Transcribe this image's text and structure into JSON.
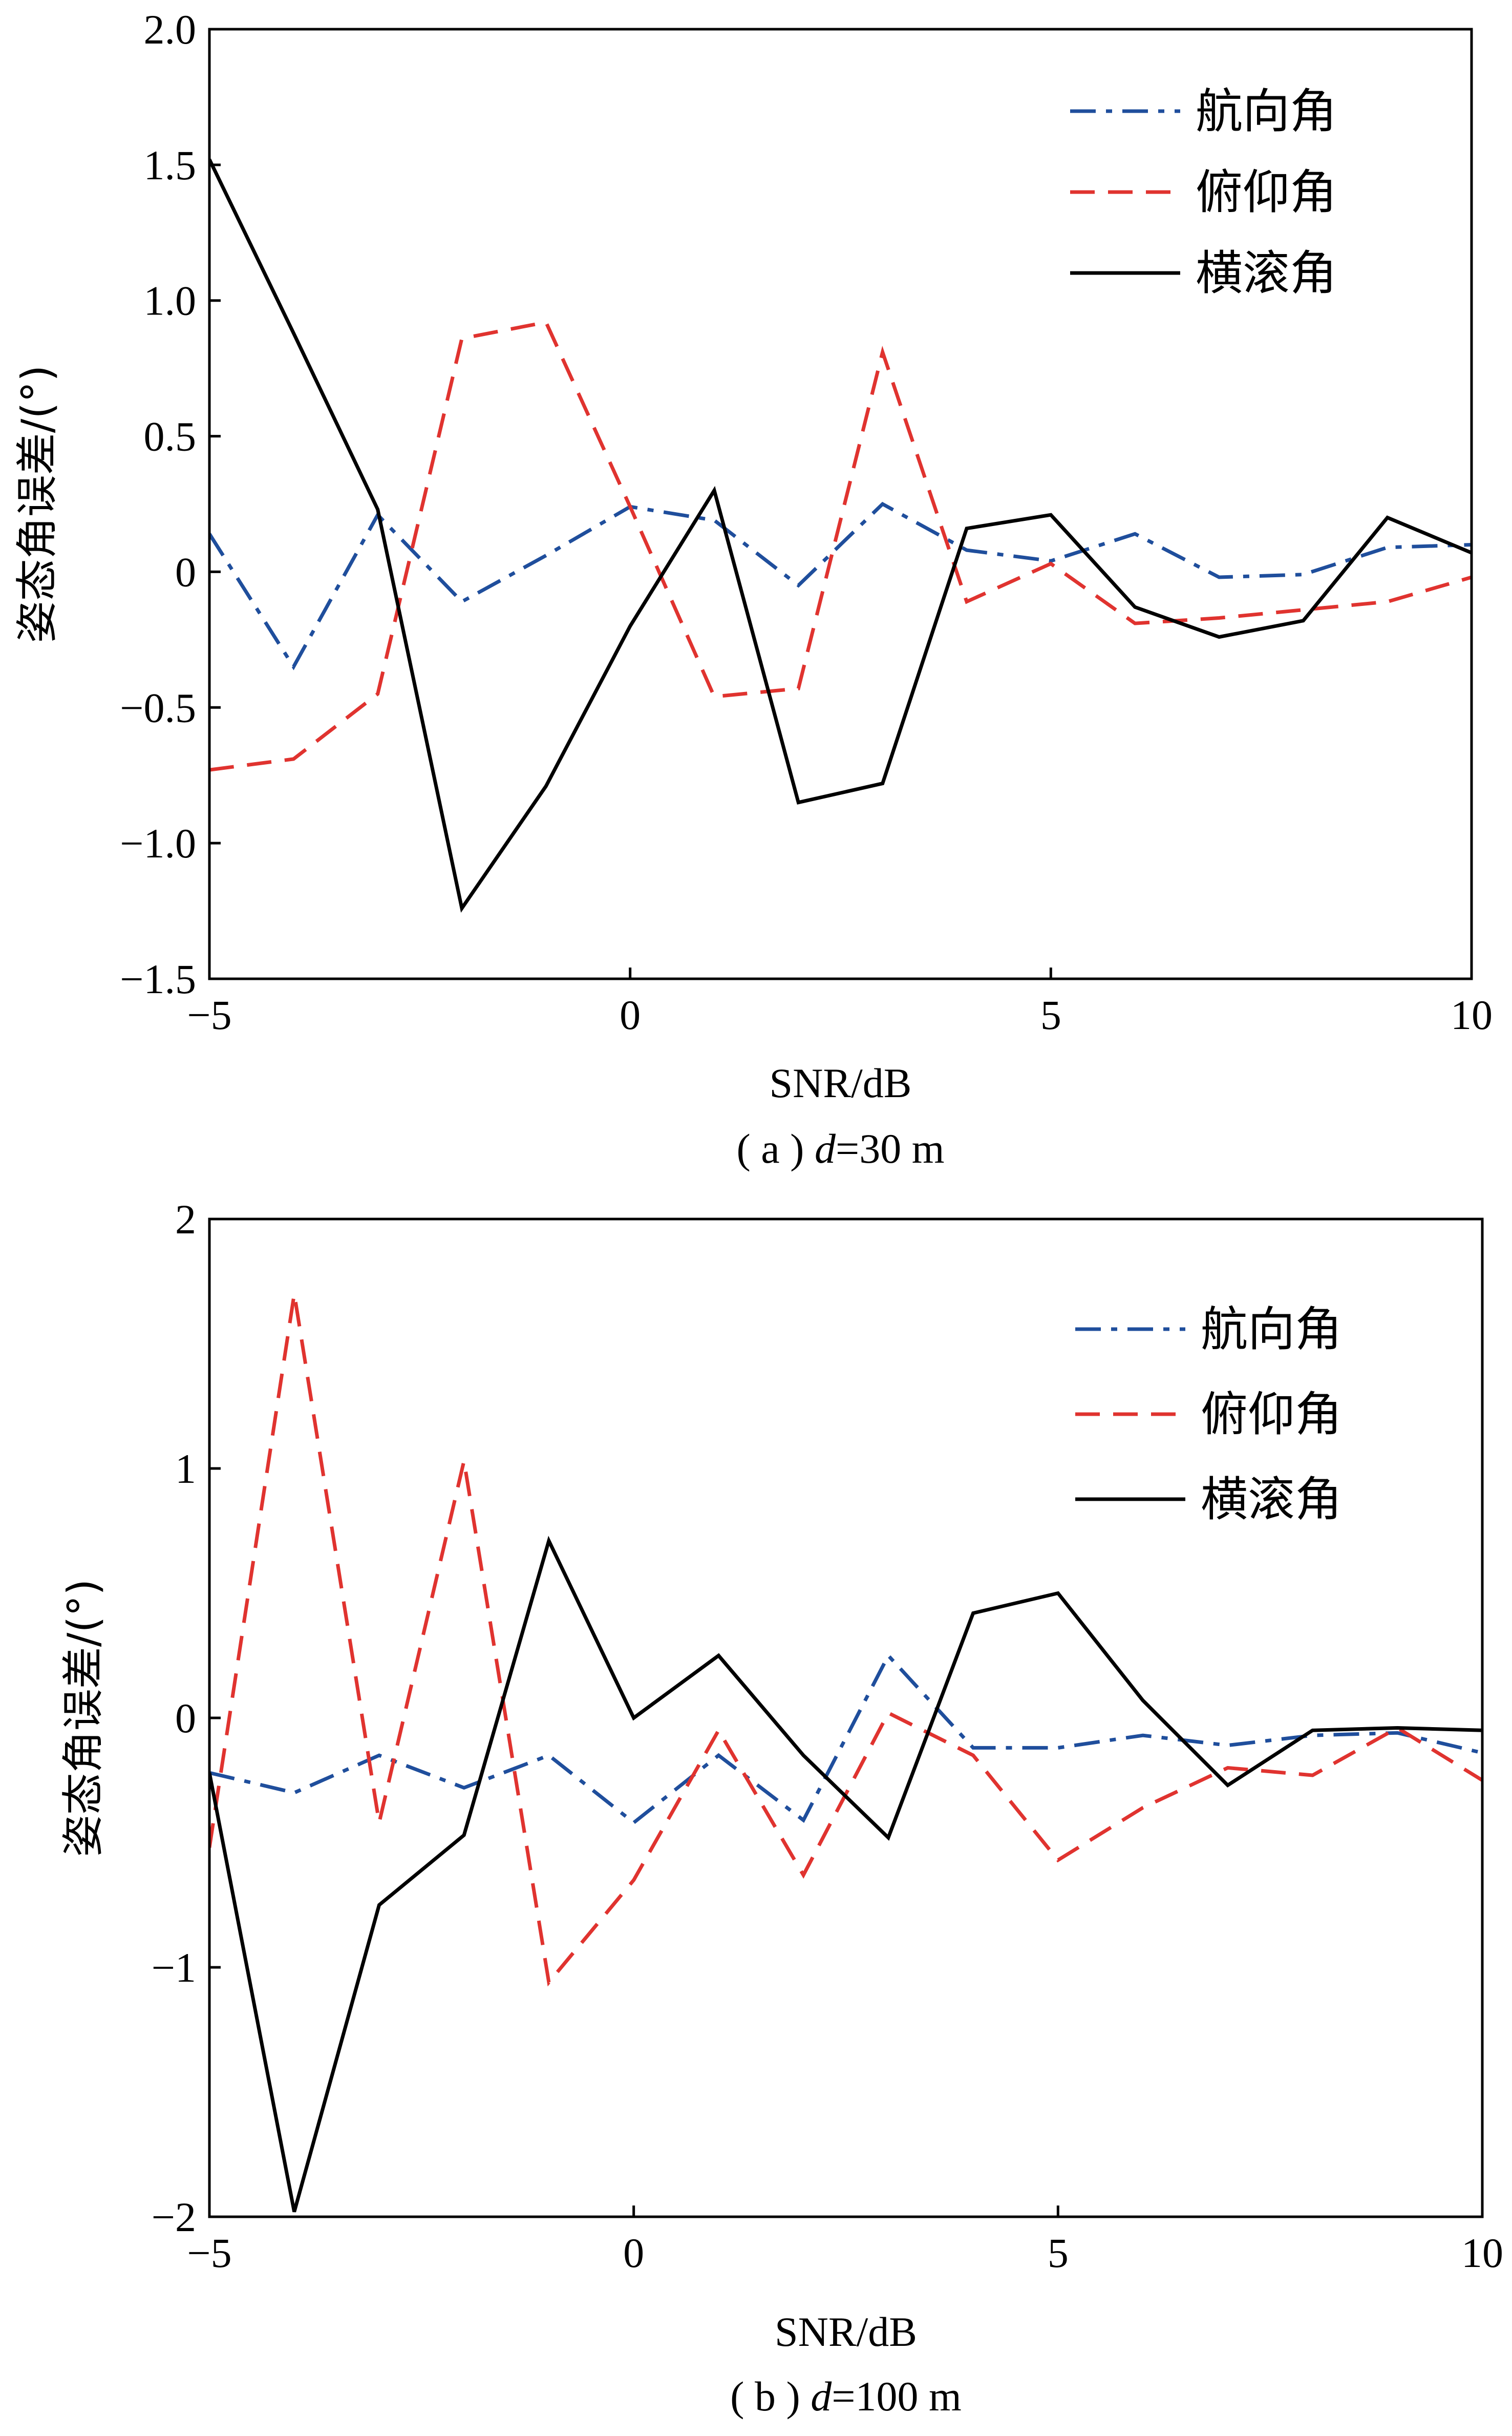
{
  "chart_data": [
    {
      "type": "line",
      "caption": "( a ) ",
      "caption_var": "d",
      "caption_rest": "=30 m",
      "xlabel": "SNR/dB",
      "ylabel": "姿态角误差/(°)",
      "xlim": [
        -5,
        10
      ],
      "ylim": [
        -1.5,
        2.0
      ],
      "xticks": [
        -5,
        0,
        5,
        10
      ],
      "yticks": [
        -1.5,
        -1.0,
        -0.5,
        0,
        0.5,
        1.0,
        1.5,
        2.0
      ],
      "ytick_labels": [
        "−1.5",
        "−1.0",
        "−0.5",
        "0",
        "0.5",
        "1.0",
        "1.5",
        "2.0"
      ],
      "xtick_labels": [
        "−5",
        "0",
        "5",
        "10"
      ],
      "legend_position": "top-right",
      "x": [
        -5,
        -4,
        -3,
        -2,
        -1,
        0,
        1,
        2,
        3,
        4,
        5,
        6,
        7,
        8,
        9,
        10
      ],
      "series": [
        {
          "name": "航向角",
          "style": "dash-dot",
          "color": "#1f4e9c",
          "values": [
            0.14,
            -0.35,
            0.21,
            -0.11,
            0.06,
            0.24,
            0.19,
            -0.05,
            0.25,
            0.08,
            0.04,
            0.14,
            -0.02,
            -0.01,
            0.09,
            0.1
          ]
        },
        {
          "name": "俯仰角",
          "style": "dashed",
          "color": "#e0332f",
          "values": [
            -0.73,
            -0.69,
            -0.45,
            0.86,
            0.92,
            0.24,
            -0.46,
            -0.43,
            0.81,
            -0.11,
            0.03,
            -0.19,
            -0.17,
            -0.14,
            -0.11,
            -0.02
          ]
        },
        {
          "name": "横滚角",
          "style": "solid",
          "color": "#000000",
          "values": [
            1.52,
            0.88,
            0.23,
            -1.24,
            -0.79,
            -0.2,
            0.3,
            -0.85,
            -0.78,
            0.16,
            0.21,
            -0.13,
            -0.24,
            -0.18,
            0.2,
            0.07
          ]
        }
      ]
    },
    {
      "type": "line",
      "caption": "( b ) ",
      "caption_var": "d",
      "caption_rest": "=100 m",
      "xlabel": "SNR/dB",
      "ylabel": "姿态角误差/(°)",
      "xlim": [
        -5,
        10
      ],
      "ylim": [
        -2,
        2
      ],
      "xticks": [
        -5,
        0,
        5,
        10
      ],
      "yticks": [
        -2,
        -1,
        0,
        1,
        2
      ],
      "ytick_labels": [
        "−2",
        "−1",
        "0",
        "1",
        "2"
      ],
      "xtick_labels": [
        "−5",
        "0",
        "5",
        "10"
      ],
      "legend_position": "top-right",
      "x": [
        -5,
        -4,
        -3,
        -2,
        -1,
        0,
        1,
        2,
        3,
        4,
        5,
        6,
        7,
        8,
        9,
        10
      ],
      "series": [
        {
          "name": "航向角",
          "style": "dash-dot",
          "color": "#1f4e9c",
          "values": [
            -0.22,
            -0.3,
            -0.15,
            -0.28,
            -0.15,
            -0.42,
            -0.15,
            -0.41,
            0.25,
            -0.12,
            -0.12,
            -0.07,
            -0.11,
            -0.07,
            -0.06,
            -0.14
          ]
        },
        {
          "name": "俯仰角",
          "style": "dashed",
          "color": "#e0332f",
          "values": [
            -0.52,
            1.7,
            -0.42,
            1.03,
            -1.06,
            -0.65,
            -0.05,
            -0.63,
            0.02,
            -0.15,
            -0.57,
            -0.36,
            -0.2,
            -0.23,
            -0.04,
            -0.25
          ]
        },
        {
          "name": "横滚角",
          "style": "solid",
          "color": "#000000",
          "values": [
            -0.22,
            -1.98,
            -0.75,
            -0.47,
            0.71,
            0.0,
            0.25,
            -0.15,
            -0.48,
            0.42,
            0.5,
            0.07,
            -0.27,
            -0.05,
            -0.04,
            -0.05
          ]
        }
      ]
    }
  ]
}
